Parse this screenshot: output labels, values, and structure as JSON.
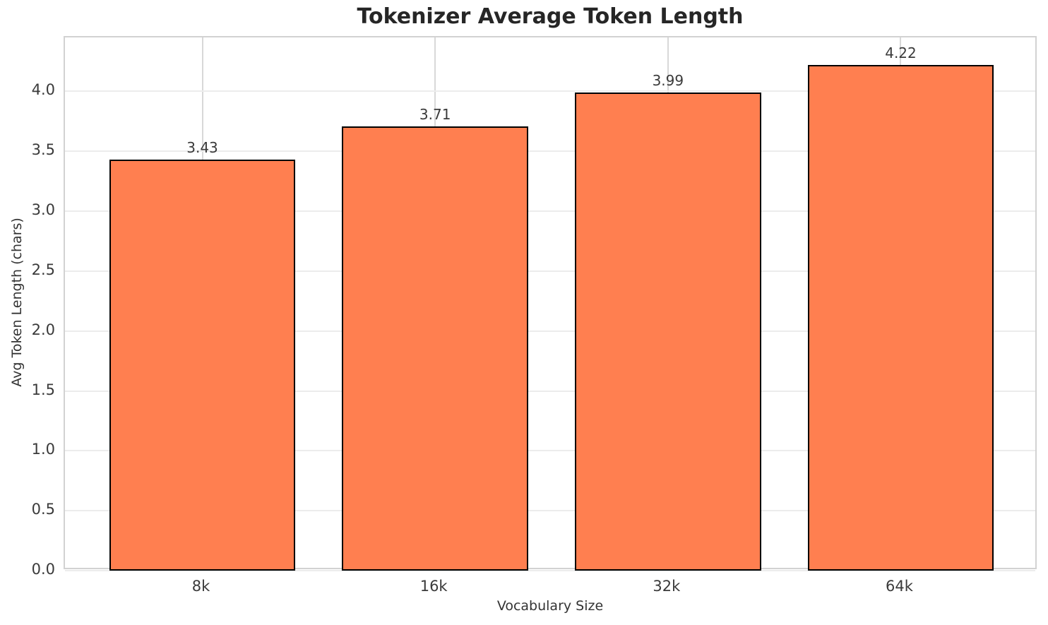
{
  "chart_data": {
    "type": "bar",
    "title": "Tokenizer Average Token Length",
    "xlabel": "Vocabulary Size",
    "ylabel": "Avg Token Length (chars)",
    "categories": [
      "8k",
      "16k",
      "32k",
      "64k"
    ],
    "values": [
      3.43,
      3.71,
      3.99,
      4.22
    ],
    "value_labels": [
      "3.43",
      "3.71",
      "3.99",
      "4.22"
    ],
    "ytick_labels": [
      "0.0",
      "0.5",
      "1.0",
      "1.5",
      "2.0",
      "2.5",
      "3.0",
      "3.5",
      "4.0"
    ],
    "yticks": [
      0.0,
      0.5,
      1.0,
      1.5,
      2.0,
      2.5,
      3.0,
      3.5,
      4.0
    ],
    "ylim": [
      0,
      4.45
    ],
    "grid": true,
    "legend": "none",
    "bar_color": "#ff7f50",
    "bar_edge_color": "#000000",
    "background_color": "#ffffff"
  }
}
